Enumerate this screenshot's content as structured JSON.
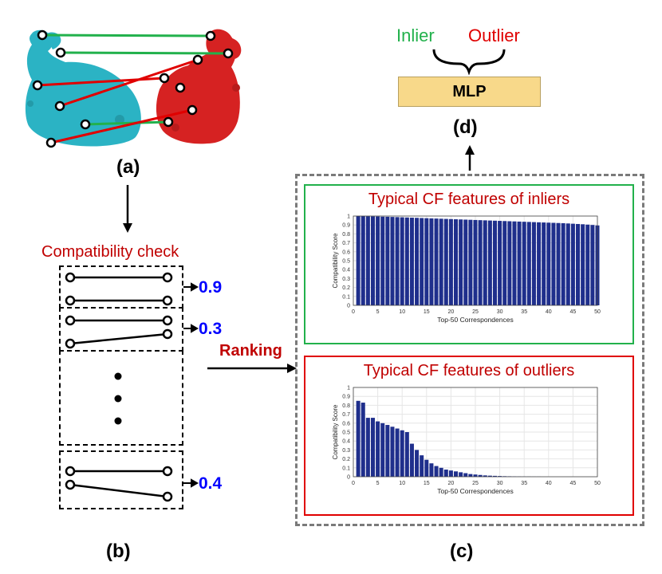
{
  "labels": {
    "a": "(a)",
    "b": "(b)",
    "c": "(c)",
    "d": "(d)"
  },
  "compat_title": "Compatibility check",
  "scores": [
    "0.9",
    "0.3",
    "0.4"
  ],
  "ranking": "Ranking",
  "mlp": {
    "label": "MLP",
    "inlier": "Inlier",
    "outlier": "Outlier"
  },
  "colors": {
    "inlier_line": "#22b14c",
    "outlier_line": "#e00000",
    "bar": "#1f2f8c",
    "title_red": "#c00000",
    "score_blue": "#0000ff"
  },
  "chart_data": [
    {
      "type": "bar",
      "title": "Typical CF features of inliers",
      "xlabel": "Top-50 Correspondences",
      "ylabel": "Compatibility Score",
      "ylim": [
        0,
        1
      ],
      "xlim": [
        0,
        50
      ],
      "xticks": [
        "0",
        "5",
        "10",
        "15",
        "20",
        "25",
        "30",
        "35",
        "40",
        "45",
        "50"
      ],
      "yticks": [
        "0",
        "0.1",
        "0.2",
        "0.3",
        "0.4",
        "0.5",
        "0.6",
        "0.7",
        "0.8",
        "0.9",
        "1"
      ],
      "grid": true,
      "values": [
        1.0,
        1.0,
        0.998,
        0.996,
        0.995,
        0.993,
        0.992,
        0.99,
        0.988,
        0.986,
        0.984,
        0.982,
        0.98,
        0.978,
        0.976,
        0.974,
        0.972,
        0.97,
        0.968,
        0.966,
        0.964,
        0.962,
        0.96,
        0.958,
        0.956,
        0.954,
        0.952,
        0.95,
        0.948,
        0.946,
        0.944,
        0.942,
        0.94,
        0.938,
        0.936,
        0.934,
        0.932,
        0.93,
        0.928,
        0.926,
        0.924,
        0.922,
        0.92,
        0.917,
        0.914,
        0.911,
        0.908,
        0.904,
        0.9,
        0.895
      ]
    },
    {
      "type": "bar",
      "title": "Typical CF features of outliers",
      "xlabel": "Top-50 Correspondences",
      "ylabel": "Compatibility Score",
      "ylim": [
        0,
        1
      ],
      "xlim": [
        0,
        50
      ],
      "xticks": [
        "0",
        "5",
        "10",
        "15",
        "20",
        "25",
        "30",
        "35",
        "40",
        "45",
        "50"
      ],
      "yticks": [
        "0",
        "0.1",
        "0.2",
        "0.3",
        "0.4",
        "0.5",
        "0.6",
        "0.7",
        "0.8",
        "0.9",
        "1"
      ],
      "grid": true,
      "values": [
        0.85,
        0.83,
        0.66,
        0.66,
        0.62,
        0.6,
        0.58,
        0.56,
        0.54,
        0.52,
        0.5,
        0.37,
        0.3,
        0.24,
        0.19,
        0.15,
        0.12,
        0.1,
        0.08,
        0.07,
        0.06,
        0.05,
        0.04,
        0.03,
        0.025,
        0.02,
        0.015,
        0.012,
        0.01,
        0.008,
        0.006,
        0.005,
        0.004,
        0.003,
        0.002,
        0.002,
        0.001,
        0.001,
        0,
        0,
        0,
        0,
        0,
        0,
        0,
        0,
        0,
        0,
        0,
        0
      ]
    }
  ]
}
